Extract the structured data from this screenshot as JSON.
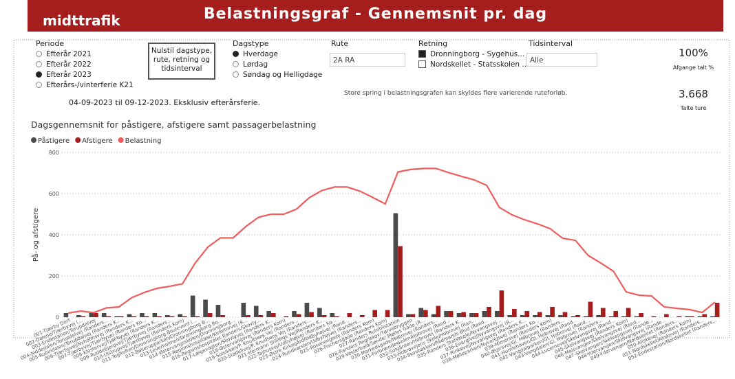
{
  "header": {
    "logo": "midttrafik",
    "title": "Belastningsgraf - Gennemsnit pr. dag"
  },
  "periode": {
    "label": "Periode",
    "options": [
      "Efterår 2021",
      "Efterår 2022",
      "Efterår 2023",
      "Efterårs-/vinterferie K21"
    ],
    "selected": 2
  },
  "reset": "Nulstil dagstype, rute, retning og tidsinterval",
  "dagstype": {
    "label": "Dagstype",
    "options": [
      "Hverdage",
      "Lørdag",
      "Søndag og Helligdage"
    ],
    "selected": 0
  },
  "rute": {
    "label": "Rute",
    "value": "2A RA"
  },
  "retning": {
    "label": "Retning",
    "options": [
      "Dronningborg - Sygehus...",
      "Nordskellet - Statsskolen ..."
    ],
    "selected": 0
  },
  "tidsinterval": {
    "label": "Tidsinterval",
    "value": "Alle"
  },
  "kpi": [
    {
      "value": "100%",
      "label": "Afgange talt %"
    },
    {
      "value": "3.668",
      "label": "Talte ture"
    }
  ],
  "daterange": "04-09-2023 til 09-12-2023. Eksklusiv efterårsferie.",
  "note": "Store spring i belastningsgrafen kan skyldes flere varierende ruteforløb.",
  "chart_data": {
    "type": "bar-line",
    "title": "Dagsgennemsnit for påstigere, afstigere samt passagerbelastning",
    "ylabel": "På- og afstigere",
    "ylim": [
      0,
      800
    ],
    "yticks": [
      0,
      200,
      400,
      600,
      800
    ],
    "grid": true,
    "categories": [
      "001-Tjærby Dorf",
      "002-Dalene/Tjærbyvej (...",
      "003-Endestation/Torupdalvej",
      "004-Jeddedalen/Torupdalvej (Randers...",
      "005-Rubindalen/Torupdalvej (Randers K...",
      "006-Tjærbyvej/Nyholmsvej (Randers K...",
      "007-Tjærbyvej/Tjærbyvej (Randers Ko...",
      "008-Klostervej/Tjærbyvej (Randers K...",
      "009-Ruddebjergvej/Tjærbyvej (Randers...",
      "010-Ulstrupvej/Tjærbyvej (Randers Kom)",
      "011-Tegltoften/Dronningborg Boulevard (...",
      "012-Bøllerupparken/Dronningborg B...",
      "013-Leverholmen/Dronningborg Bo...",
      "014-Østervangsskolen/Dronningborg...",
      "015-Regionshospitalet/Kirketorvej (R...",
      "016-Regionshospitalet Randers/Skovly...",
      "017-Lægevagten/Skovlyvej (Randers K...",
      "018-Østervangsvej (Randers Kom)",
      "019-Solsikken/P. Knudsens Vej (Randers...",
      "020-Stadellvej/P. Knudsens Vej (Randers...",
      "021-Hermann Stillings Vej/Randers K...",
      "022-Tajhusvej/Udbyhøjvej (Randers Ko...",
      "023-Østre Kirkegård/Udbyhøjvej (Rand...",
      "024-Rundkørslen/Udbyhøjvej (Randers...",
      "025-Rosenengade (Randers Kom)",
      "026-Fischersgade (Randers Kom)",
      "027-Randers Rutebilstation",
      "028-Randers Regnskov/Tørvebryggen",
      "029-Vesterbold/Sønder Mølles Gade (R...",
      "030-Markedsgade/Hobrovej (Randers...",
      "031-Forbrændeskolen/Hobrovej (Rand...",
      "032-Solgården/Hobrovej (Randers K...",
      "033-Hobrovejens Skole/Hobrovej (Ran...",
      "034-Skovbakken/Rådmands Blvd (Rand...",
      "035-Randers Statsskole/Nyvangsvej...",
      "036-Energivej/Nyvangsvej (R...",
      "037-Rinkøvej/Nyvangsvej (Randers K...",
      "038-Mølleparken/Nyvangsvej (Randers Ko...",
      "039-Mimersvej (Randers Kom)",
      "040-Ægirsvej/Gl. Hobrovej (Randers...",
      "041-Humlehaven/Gl. Hobrovej (Rand...",
      "042-Vangdalparken/Gl. Hobrovej (Rand...",
      "043-Vangdalen/Gl. Hobrovej (Randers...",
      "044-Lucernevej/Skelvangsvej (Rand...",
      "045-Skelvangsvej (Randers Kom)",
      "046-Majsvangen/Skelvangsvej (Rand...",
      "047-Skelvangen/Skelvangsvej (Rande...",
      "048-Ydervangen/Skelvangsvej (Rande...",
      "049-Ydervangen/Nordskellet (Randers...",
      "050-Aliskevej (Randers Kom)",
      "051-Nordskellet/Aliskevej (Randers...",
      "052-Endestation/Nordskellet (Randers..."
    ],
    "series": [
      {
        "name": "Påstigere",
        "color": "#4a4a4a",
        "kind": "bar",
        "values": [
          20,
          10,
          20,
          20,
          5,
          15,
          20,
          20,
          10,
          15,
          105,
          85,
          60,
          0,
          70,
          55,
          30,
          0,
          30,
          70,
          45,
          20,
          0,
          0,
          0,
          0,
          505,
          15,
          45,
          15,
          30,
          20,
          20,
          30,
          30,
          10,
          10,
          10,
          10,
          10,
          5,
          5,
          10,
          5,
          5,
          5,
          0,
          0,
          0,
          5,
          5,
          5
        ]
      },
      {
        "name": "Afstigere",
        "color": "#a51d1d",
        "kind": "bar",
        "values": [
          0,
          5,
          20,
          5,
          5,
          5,
          5,
          5,
          5,
          5,
          5,
          20,
          10,
          0,
          10,
          10,
          20,
          5,
          15,
          25,
          10,
          5,
          20,
          10,
          35,
          35,
          345,
          15,
          35,
          55,
          30,
          25,
          20,
          50,
          130,
          40,
          30,
          25,
          50,
          25,
          10,
          75,
          45,
          30,
          45,
          20,
          5,
          15,
          5,
          5,
          15,
          70
        ]
      },
      {
        "name": "Belastning",
        "color": "#ee5c5c",
        "kind": "line",
        "values": [
          20,
          30,
          22,
          45,
          50,
          95,
          120,
          140,
          150,
          162,
          262,
          340,
          385,
          385,
          440,
          485,
          500,
          500,
          525,
          580,
          615,
          632,
          632,
          612,
          582,
          550,
          705,
          717,
          722,
          722,
          702,
          684,
          667,
          640,
          533,
          497,
          473,
          453,
          430,
          383,
          373,
          300,
          263,
          223,
          123,
          107,
          103,
          50,
          43,
          37,
          23,
          73
        ]
      }
    ]
  }
}
